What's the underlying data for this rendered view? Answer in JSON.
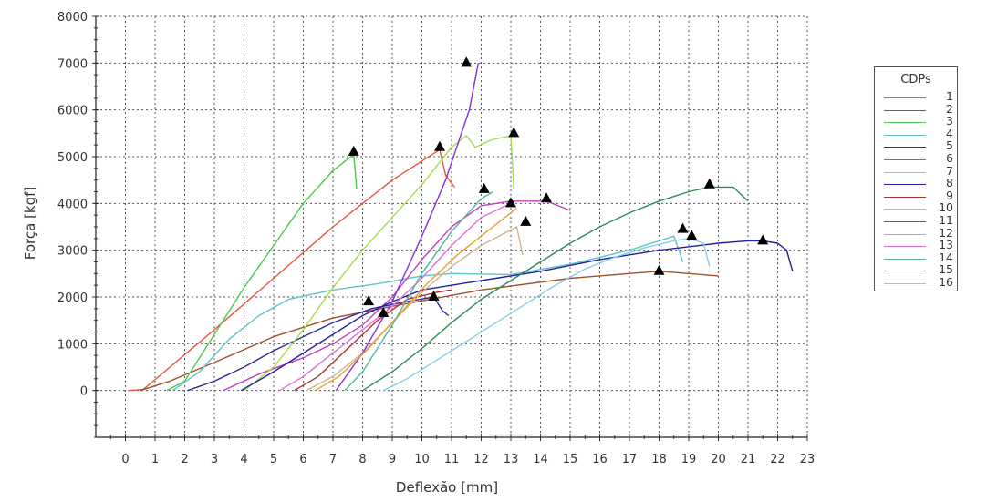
{
  "chart_data": {
    "type": "line",
    "title": "",
    "xlabel": "Deflexão [mm]",
    "ylabel": "Força [kgf]",
    "xlim": [
      -1,
      23
    ],
    "ylim": [
      -1000,
      8000
    ],
    "x_ticks": [
      "0",
      "1",
      "2",
      "3",
      "4",
      "5",
      "6",
      "7",
      "8",
      "9",
      "10",
      "11",
      "12",
      "13",
      "14",
      "15",
      "16",
      "17",
      "18",
      "19",
      "20",
      "21",
      "22",
      "23"
    ],
    "y_ticks": [
      "0",
      "1000",
      "2000",
      "3000",
      "4000",
      "5000",
      "6000",
      "7000",
      "8000"
    ],
    "grid": true,
    "legend_title": "CDPs",
    "legend_position": "right",
    "series": [
      {
        "name": "1",
        "color": "#e8533f",
        "points": [
          [
            0.1,
            0
          ],
          [
            0.6,
            20
          ],
          [
            1.5,
            500
          ],
          [
            3,
            1300
          ],
          [
            5,
            2400
          ],
          [
            7,
            3500
          ],
          [
            9,
            4500
          ],
          [
            10.6,
            5150
          ],
          [
            10.8,
            4600
          ],
          [
            11.1,
            4350
          ]
        ],
        "peaks": [
          [
            10.6,
            5200
          ]
        ]
      },
      {
        "name": "2",
        "color": "#a0522d",
        "points": [
          [
            0.5,
            0
          ],
          [
            1.5,
            200
          ],
          [
            3,
            600
          ],
          [
            5,
            1150
          ],
          [
            7,
            1550
          ],
          [
            9,
            1800
          ],
          [
            12,
            2150
          ],
          [
            15,
            2400
          ],
          [
            17,
            2500
          ],
          [
            18,
            2550
          ],
          [
            19,
            2500
          ],
          [
            20,
            2450
          ]
        ],
        "peaks": [
          [
            18,
            2550
          ]
        ]
      },
      {
        "name": "3",
        "color": "#4cc94c",
        "points": [
          [
            1.4,
            0
          ],
          [
            2,
            200
          ],
          [
            3,
            1200
          ],
          [
            4,
            2200
          ],
          [
            5,
            3100
          ],
          [
            6,
            4000
          ],
          [
            7,
            4700
          ],
          [
            7.7,
            5050
          ],
          [
            7.8,
            4300
          ]
        ],
        "peaks": [
          [
            7.7,
            5100
          ]
        ]
      },
      {
        "name": "4",
        "color": "#60c4c4",
        "points": [
          [
            1.6,
            0
          ],
          [
            2.5,
            400
          ],
          [
            3.5,
            1100
          ],
          [
            4.5,
            1600
          ],
          [
            5.5,
            1950
          ],
          [
            7,
            2150
          ],
          [
            8.5,
            2280
          ],
          [
            10,
            2450
          ],
          [
            11,
            2500
          ],
          [
            13,
            2480
          ],
          [
            15,
            2700
          ],
          [
            17,
            3000
          ],
          [
            18.5,
            3300
          ],
          [
            18.8,
            2750
          ]
        ],
        "peaks": [
          [
            18.8,
            3450
          ]
        ]
      },
      {
        "name": "5",
        "color": "#2b2b9a",
        "points": [
          [
            2.1,
            0
          ],
          [
            3,
            200
          ],
          [
            4,
            500
          ],
          [
            5,
            850
          ],
          [
            6,
            1150
          ],
          [
            7,
            1450
          ],
          [
            8.3,
            1750
          ],
          [
            9.5,
            1900
          ],
          [
            10.4,
            2000
          ],
          [
            10.7,
            1700
          ],
          [
            10.9,
            1600
          ]
        ],
        "peaks": [
          [
            10.4,
            2000
          ]
        ]
      },
      {
        "name": "6",
        "color": "#c040c0",
        "points": [
          [
            3.3,
            0
          ],
          [
            4.5,
            350
          ],
          [
            6,
            700
          ],
          [
            7,
            1000
          ],
          [
            8,
            1400
          ],
          [
            9,
            2000
          ],
          [
            10,
            2800
          ],
          [
            11,
            3500
          ],
          [
            12,
            3950
          ],
          [
            13,
            4050
          ],
          [
            14.2,
            4050
          ],
          [
            15,
            3850
          ]
        ],
        "peaks": [
          [
            14.2,
            4100
          ]
        ]
      },
      {
        "name": "7",
        "color": "#a8dc4a",
        "points": [
          [
            4,
            0
          ],
          [
            5,
            500
          ],
          [
            6,
            1300
          ],
          [
            7,
            2200
          ],
          [
            8,
            3000
          ],
          [
            9,
            3700
          ],
          [
            10,
            4400
          ],
          [
            11,
            5200
          ],
          [
            11.5,
            5450
          ],
          [
            11.8,
            5200
          ],
          [
            12.3,
            5350
          ],
          [
            13,
            5450
          ],
          [
            13.1,
            4300
          ]
        ],
        "peaks": [
          [
            13.1,
            5500
          ]
        ]
      },
      {
        "name": "8",
        "color": "#2020a0",
        "points": [
          [
            3.9,
            0
          ],
          [
            5,
            400
          ],
          [
            6,
            800
          ],
          [
            7,
            1200
          ],
          [
            8,
            1600
          ],
          [
            9,
            1900
          ],
          [
            10,
            2150
          ],
          [
            12,
            2350
          ],
          [
            14,
            2550
          ],
          [
            16,
            2800
          ],
          [
            18,
            3000
          ],
          [
            20,
            3150
          ],
          [
            21,
            3200
          ],
          [
            21.5,
            3200
          ],
          [
            22,
            3150
          ],
          [
            22.3,
            3000
          ],
          [
            22.5,
            2550
          ]
        ],
        "peaks": [
          [
            21.5,
            3200
          ]
        ]
      },
      {
        "name": "9",
        "color": "#b03030",
        "points": [
          [
            5.7,
            0
          ],
          [
            6.5,
            300
          ],
          [
            7.5,
            900
          ],
          [
            8.5,
            1500
          ],
          [
            9.5,
            1950
          ],
          [
            10.5,
            2100
          ],
          [
            11,
            2150
          ]
        ],
        "peaks": [
          [
            8.7,
            1650
          ]
        ]
      },
      {
        "name": "10",
        "color": "#d2b48c",
        "points": [
          [
            6.1,
            0
          ],
          [
            7,
            300
          ],
          [
            8,
            800
          ],
          [
            9,
            1450
          ],
          [
            10,
            2100
          ],
          [
            11,
            2650
          ],
          [
            12,
            3100
          ],
          [
            13.2,
            3500
          ],
          [
            13.4,
            2900
          ]
        ],
        "peaks": [
          [
            13.5,
            3600
          ]
        ]
      },
      {
        "name": "11",
        "color": "#8a2be2",
        "points": [
          [
            7.1,
            0
          ],
          [
            8,
            800
          ],
          [
            9,
            1900
          ],
          [
            10,
            3300
          ],
          [
            10.8,
            4500
          ],
          [
            11.6,
            6000
          ],
          [
            11.9,
            7000
          ]
        ],
        "peaks": [
          [
            11.5,
            7000
          ]
        ]
      },
      {
        "name": "12",
        "color": "#e8a030",
        "points": [
          [
            6.4,
            0
          ],
          [
            7.2,
            300
          ],
          [
            8.2,
            900
          ],
          [
            9.2,
            1600
          ],
          [
            10.2,
            2300
          ],
          [
            11.2,
            2900
          ],
          [
            12.2,
            3400
          ],
          [
            13.2,
            3900
          ]
        ],
        "peaks": [
          [
            13,
            4000
          ]
        ]
      },
      {
        "name": "13",
        "color": "#e070e0",
        "points": [
          [
            5.2,
            0
          ],
          [
            6,
            300
          ],
          [
            7,
            800
          ],
          [
            8,
            1300
          ],
          [
            9,
            1800
          ],
          [
            10,
            2400
          ],
          [
            11,
            3100
          ],
          [
            12,
            3700
          ],
          [
            13,
            4000
          ]
        ],
        "peaks": [
          [
            8.2,
            1900
          ]
        ]
      },
      {
        "name": "14",
        "color": "#50b8a0",
        "points": [
          [
            7.4,
            0
          ],
          [
            8,
            400
          ],
          [
            9,
            1400
          ],
          [
            10,
            2500
          ],
          [
            11,
            3400
          ],
          [
            12,
            4100
          ],
          [
            12.4,
            4250
          ]
        ],
        "peaks": [
          [
            12.1,
            4300
          ]
        ]
      },
      {
        "name": "15",
        "color": "#2e8b57",
        "points": [
          [
            8,
            0
          ],
          [
            9,
            400
          ],
          [
            10,
            900
          ],
          [
            11,
            1450
          ],
          [
            12,
            1950
          ],
          [
            13,
            2350
          ],
          [
            14,
            2750
          ],
          [
            15,
            3150
          ],
          [
            16,
            3500
          ],
          [
            17,
            3800
          ],
          [
            18,
            4050
          ],
          [
            19,
            4250
          ],
          [
            19.7,
            4350
          ],
          [
            20.5,
            4350
          ],
          [
            21,
            4050
          ]
        ],
        "peaks": [
          [
            19.7,
            4400
          ]
        ]
      },
      {
        "name": "16",
        "color": "#87ceeb",
        "points": [
          [
            8.7,
            0
          ],
          [
            9.5,
            250
          ],
          [
            10.5,
            650
          ],
          [
            11.5,
            1050
          ],
          [
            12.5,
            1450
          ],
          [
            13.5,
            1850
          ],
          [
            14.5,
            2250
          ],
          [
            15.5,
            2600
          ],
          [
            16.5,
            2850
          ],
          [
            17.5,
            3050
          ],
          [
            18.5,
            3200
          ],
          [
            19,
            3250
          ],
          [
            19.5,
            3150
          ],
          [
            19.7,
            2650
          ]
        ],
        "peaks": [
          [
            19.1,
            3300
          ]
        ]
      }
    ]
  }
}
